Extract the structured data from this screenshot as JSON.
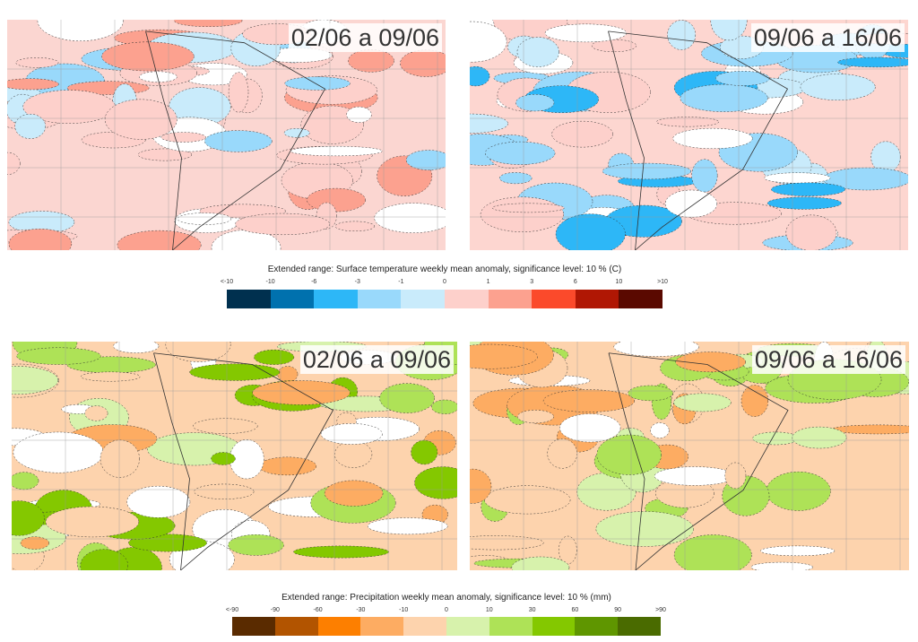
{
  "temperature": {
    "title": "Extended range: Surface temperature weekly mean anomaly, significance level: 10 % (C)",
    "ticks": [
      "<-10",
      "-10",
      "-6",
      "-3",
      "-1",
      "0",
      "1",
      "3",
      "6",
      "10",
      ">10"
    ],
    "colors": [
      "#00304f",
      "#0071ae",
      "#2db7f7",
      "#99d9fb",
      "#c9ebfb",
      "#fdd0cb",
      "#fca18f",
      "#fb4a2b",
      "#b01704",
      "#5a0900"
    ],
    "maps": [
      {
        "period": "02/06 a 09/06"
      },
      {
        "period": "09/06 a 16/06"
      }
    ]
  },
  "precipitation": {
    "title": "Extended range: Precipitation weekly mean anomaly, significance level: 10 % (mm)",
    "ticks": [
      "<-90",
      "-90",
      "-60",
      "-30",
      "-10",
      "0",
      "10",
      "30",
      "60",
      "90",
      ">90"
    ],
    "colors": [
      "#5a2b00",
      "#b25400",
      "#fd7f00",
      "#fdac62",
      "#fdd3ad",
      "#d7f2ac",
      "#aee257",
      "#84c800",
      "#5f9600",
      "#4a6b00"
    ],
    "maps": [
      {
        "period": "02/06 a 09/06"
      },
      {
        "period": "09/06 a 16/06"
      }
    ]
  }
}
